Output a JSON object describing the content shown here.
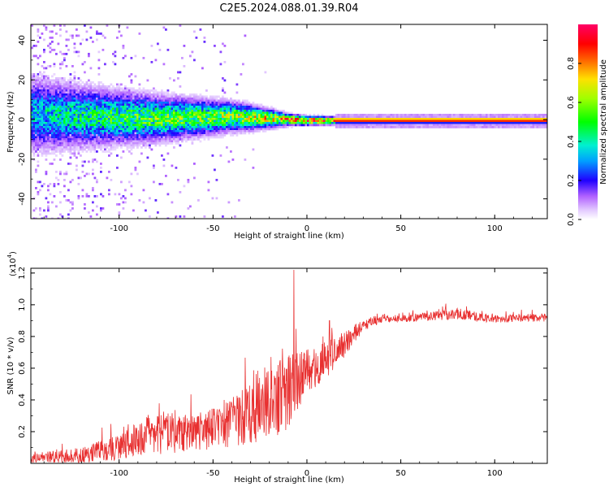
{
  "figure": {
    "title": "C2E5.2024.088.01.39.R04"
  },
  "chart_data": [
    {
      "type": "heatmap",
      "title": "C2E5.2024.088.01.39.R04",
      "xlabel": "Height of straight line (km)",
      "ylabel": "Frequency (Hz)",
      "xlim": [
        -147,
        128
      ],
      "ylim": [
        -50,
        48
      ],
      "x_ticks": [
        -100,
        -50,
        0,
        50,
        100
      ],
      "y_ticks": [
        -40,
        -20,
        0,
        20,
        40
      ],
      "colorbar": {
        "label": "Normalized spectral amplitude",
        "range": [
          0.0,
          1.0
        ],
        "ticks": [
          0.0,
          0.2,
          0.4,
          0.6,
          0.8
        ]
      },
      "ridge_profile": [
        {
          "x": -147,
          "center_hz": 3,
          "half_width_hz": 10,
          "peak_amp": 0.35
        },
        {
          "x": -120,
          "center_hz": 2,
          "half_width_hz": 8,
          "peak_amp": 0.45
        },
        {
          "x": -80,
          "center_hz": 1,
          "half_width_hz": 6,
          "peak_amp": 0.55
        },
        {
          "x": -40,
          "center_hz": 2,
          "half_width_hz": 4,
          "peak_amp": 0.6
        },
        {
          "x": -20,
          "center_hz": 1,
          "half_width_hz": 2.5,
          "peak_amp": 0.7
        },
        {
          "x": -10,
          "center_hz": 0.5,
          "half_width_hz": 1.5,
          "peak_amp": 0.85
        },
        {
          "x": 0,
          "center_hz": 0,
          "half_width_hz": 1.2,
          "peak_amp": 0.9
        },
        {
          "x": 15,
          "center_hz": 0,
          "half_width_hz": 1,
          "peak_amp": 0.95
        },
        {
          "x": 128,
          "center_hz": 0,
          "half_width_hz": 1,
          "peak_amp": 0.95
        }
      ]
    },
    {
      "type": "line",
      "xlabel": "Height of straight line (km)",
      "ylabel": "SNR (10 * v/v)",
      "y_multiplier_label": "(x10",
      "y_multiplier_exp": "4",
      "xlim": [
        -147,
        128
      ],
      "ylim": [
        0,
        1.23
      ],
      "x_ticks": [
        -100,
        -50,
        0,
        50,
        100
      ],
      "y_ticks": [
        0.2,
        0.4,
        0.6,
        0.8,
        1.0,
        1.2
      ],
      "y_tick_labels": [
        "0.2",
        "0.4",
        "0.6",
        "0.8",
        "1.0",
        "1.2"
      ],
      "series": [
        {
          "color": "#e83030",
          "envelope": [
            {
              "x": -147,
              "base": 0.02,
              "noise": 0.03
            },
            {
              "x": -120,
              "base": 0.03,
              "noise": 0.05
            },
            {
              "x": -100,
              "base": 0.07,
              "noise": 0.08
            },
            {
              "x": -80,
              "base": 0.14,
              "noise": 0.14
            },
            {
              "x": -60,
              "base": 0.14,
              "noise": 0.12
            },
            {
              "x": -40,
              "base": 0.2,
              "noise": 0.16
            },
            {
              "x": -20,
              "base": 0.28,
              "noise": 0.22
            },
            {
              "x": -10,
              "base": 0.36,
              "noise": 0.24
            },
            {
              "x": 0,
              "base": 0.52,
              "noise": 0.14
            },
            {
              "x": 10,
              "base": 0.6,
              "noise": 0.12
            },
            {
              "x": 20,
              "base": 0.72,
              "noise": 0.08
            },
            {
              "x": 30,
              "base": 0.86,
              "noise": 0.04
            },
            {
              "x": 40,
              "base": 0.9,
              "noise": 0.025
            },
            {
              "x": 60,
              "base": 0.91,
              "noise": 0.025
            },
            {
              "x": 80,
              "base": 0.93,
              "noise": 0.035
            },
            {
              "x": 100,
              "base": 0.9,
              "noise": 0.025
            },
            {
              "x": 128,
              "base": 0.91,
              "noise": 0.025
            }
          ],
          "spikes": [
            {
              "x": -7,
              "y": 1.22
            },
            {
              "x": 12,
              "y": 0.9
            },
            {
              "x": 85,
              "y": 0.99
            }
          ]
        }
      ]
    }
  ]
}
